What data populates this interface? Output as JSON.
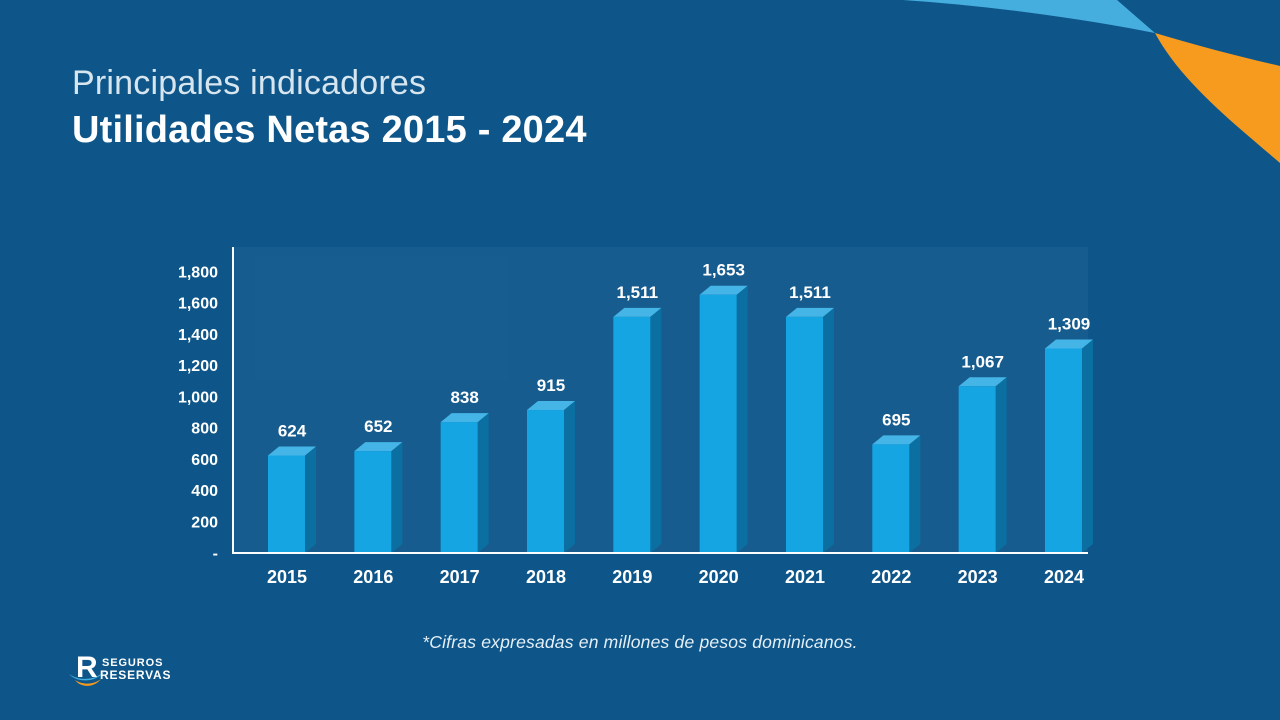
{
  "slide": {
    "title_line1": "Principales indicadores",
    "title_line2": "Utilidades Netas 2015 - 2024",
    "footnote": "*Cifras expresadas en millones de pesos dominicanos.",
    "logo": {
      "mark_letter": "R",
      "line1": "SEGUROS",
      "line2": "RESERVAS"
    }
  },
  "colors": {
    "background": "#0e568a",
    "bar_front": "#16a5e3",
    "bar_top": "#44b5e6",
    "bar_side": "#0b6fa1",
    "axis": "#fbfdfe",
    "text": "#ffffff",
    "accent_light_blue": "#45aedf",
    "accent_orange": "#f79b1e"
  },
  "chart_data": {
    "type": "bar",
    "style": "3d-column",
    "title": "Utilidades Netas 2015 - 2024",
    "categories": [
      "2015",
      "2016",
      "2017",
      "2018",
      "2019",
      "2020",
      "2021",
      "2022",
      "2023",
      "2024"
    ],
    "values": [
      624,
      652,
      838,
      915,
      1511,
      1653,
      1511,
      695,
      1067,
      1309
    ],
    "value_labels": [
      "624",
      "652",
      "838",
      "915",
      "1,511",
      "1,653",
      "1,511",
      "695",
      "1,067",
      "1,309"
    ],
    "y_ticks": [
      "1,800",
      "1,600",
      "1,400",
      "1,200",
      "1,000",
      "800",
      "600",
      "400",
      "200",
      "-"
    ],
    "ylim": [
      0,
      1800
    ],
    "y_step": 200,
    "grid": false,
    "legend": null,
    "xlabel": "",
    "ylabel": "",
    "unit_note": "millones de pesos dominicanos"
  }
}
